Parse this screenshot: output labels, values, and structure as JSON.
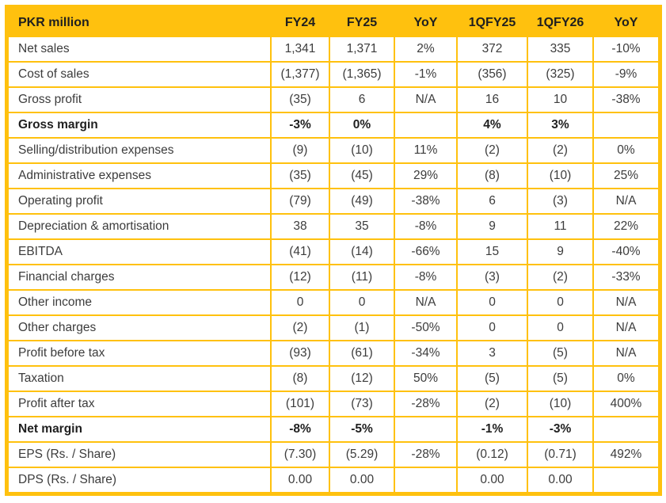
{
  "theme": {
    "gold": "#FFC10E",
    "text_body": "#3C3C3C",
    "text_strong": "#1F1F1F",
    "background": "#FFFFFF"
  },
  "table": {
    "columns": [
      {
        "key": "label",
        "label": "PKR million"
      },
      {
        "key": "fy24",
        "label": "FY24"
      },
      {
        "key": "fy25",
        "label": "FY25"
      },
      {
        "key": "yoy_fy",
        "label": "YoY"
      },
      {
        "key": "q1fy25",
        "label": "1QFY25"
      },
      {
        "key": "q1fy26",
        "label": "1QFY26"
      },
      {
        "key": "yoy_q",
        "label": "YoY"
      }
    ],
    "rows": [
      {
        "label": "Net sales",
        "bold": false,
        "cells": [
          "1,341",
          "1,371",
          "2%",
          "372",
          "335",
          "-10%"
        ]
      },
      {
        "label": "Cost of sales",
        "bold": false,
        "cells": [
          "(1,377)",
          "(1,365)",
          "-1%",
          "(356)",
          "(325)",
          "-9%"
        ]
      },
      {
        "label": "Gross profit",
        "bold": false,
        "cells": [
          "(35)",
          "6",
          "N/A",
          "16",
          "10",
          "-38%"
        ]
      },
      {
        "label": "Gross margin",
        "bold": true,
        "cells": [
          "-3%",
          "0%",
          "",
          "4%",
          "3%",
          ""
        ]
      },
      {
        "label": "Selling/distribution expenses",
        "bold": false,
        "cells": [
          "(9)",
          "(10)",
          "11%",
          "(2)",
          "(2)",
          "0%"
        ]
      },
      {
        "label": "Administrative expenses",
        "bold": false,
        "cells": [
          "(35)",
          "(45)",
          "29%",
          "(8)",
          "(10)",
          "25%"
        ]
      },
      {
        "label": "Operating profit",
        "bold": false,
        "cells": [
          "(79)",
          "(49)",
          "-38%",
          "6",
          "(3)",
          "N/A"
        ]
      },
      {
        "label": "Depreciation & amortisation",
        "bold": false,
        "cells": [
          "38",
          "35",
          "-8%",
          "9",
          "11",
          "22%"
        ]
      },
      {
        "label": "EBITDA",
        "bold": false,
        "cells": [
          "(41)",
          "(14)",
          "-66%",
          "15",
          "9",
          "-40%"
        ]
      },
      {
        "label": "Financial charges",
        "bold": false,
        "cells": [
          "(12)",
          "(11)",
          "-8%",
          "(3)",
          "(2)",
          "-33%"
        ]
      },
      {
        "label": "Other income",
        "bold": false,
        "cells": [
          "0",
          "0",
          "N/A",
          "0",
          "0",
          "N/A"
        ]
      },
      {
        "label": "Other charges",
        "bold": false,
        "cells": [
          "(2)",
          "(1)",
          "-50%",
          "0",
          "0",
          "N/A"
        ]
      },
      {
        "label": "Profit before tax",
        "bold": false,
        "cells": [
          "(93)",
          "(61)",
          "-34%",
          "3",
          "(5)",
          "N/A"
        ]
      },
      {
        "label": "Taxation",
        "bold": false,
        "cells": [
          "(8)",
          "(12)",
          "50%",
          "(5)",
          "(5)",
          "0%"
        ]
      },
      {
        "label": "Profit after tax",
        "bold": false,
        "cells": [
          "(101)",
          "(73)",
          "-28%",
          "(2)",
          "(10)",
          "400%"
        ]
      },
      {
        "label": "Net margin",
        "bold": true,
        "cells": [
          "-8%",
          "-5%",
          "",
          "-1%",
          "-3%",
          ""
        ]
      },
      {
        "label": "EPS (Rs. / Share)",
        "bold": false,
        "cells": [
          "(7.30)",
          "(5.29)",
          "-28%",
          "(0.12)",
          "(0.71)",
          "492%"
        ]
      },
      {
        "label": "DPS (Rs. / Share)",
        "bold": false,
        "cells": [
          "0.00",
          "0.00",
          "",
          "0.00",
          "0.00",
          ""
        ]
      }
    ]
  }
}
